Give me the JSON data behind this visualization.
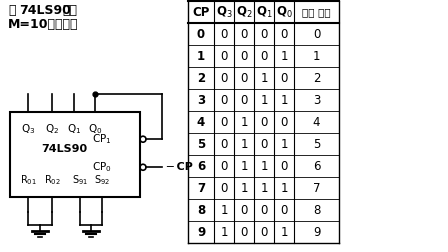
{
  "title_line1_pre": "用",
  "title_line1_bold": "74LS90",
  "title_line1_post": "构成",
  "title_line2": "M=10的计数器",
  "chip_label": "74LS90",
  "cp_values": [
    0,
    1,
    2,
    3,
    4,
    5,
    6,
    7,
    8,
    9
  ],
  "q3": [
    0,
    0,
    0,
    0,
    0,
    0,
    0,
    0,
    1,
    1
  ],
  "q2": [
    0,
    0,
    0,
    0,
    1,
    1,
    1,
    1,
    0,
    0
  ],
  "q1": [
    0,
    0,
    1,
    1,
    0,
    0,
    1,
    1,
    0,
    0
  ],
  "q0": [
    0,
    1,
    0,
    1,
    0,
    1,
    0,
    1,
    0,
    1
  ],
  "decimal": [
    0,
    1,
    2,
    3,
    4,
    5,
    6,
    7,
    8,
    9
  ]
}
